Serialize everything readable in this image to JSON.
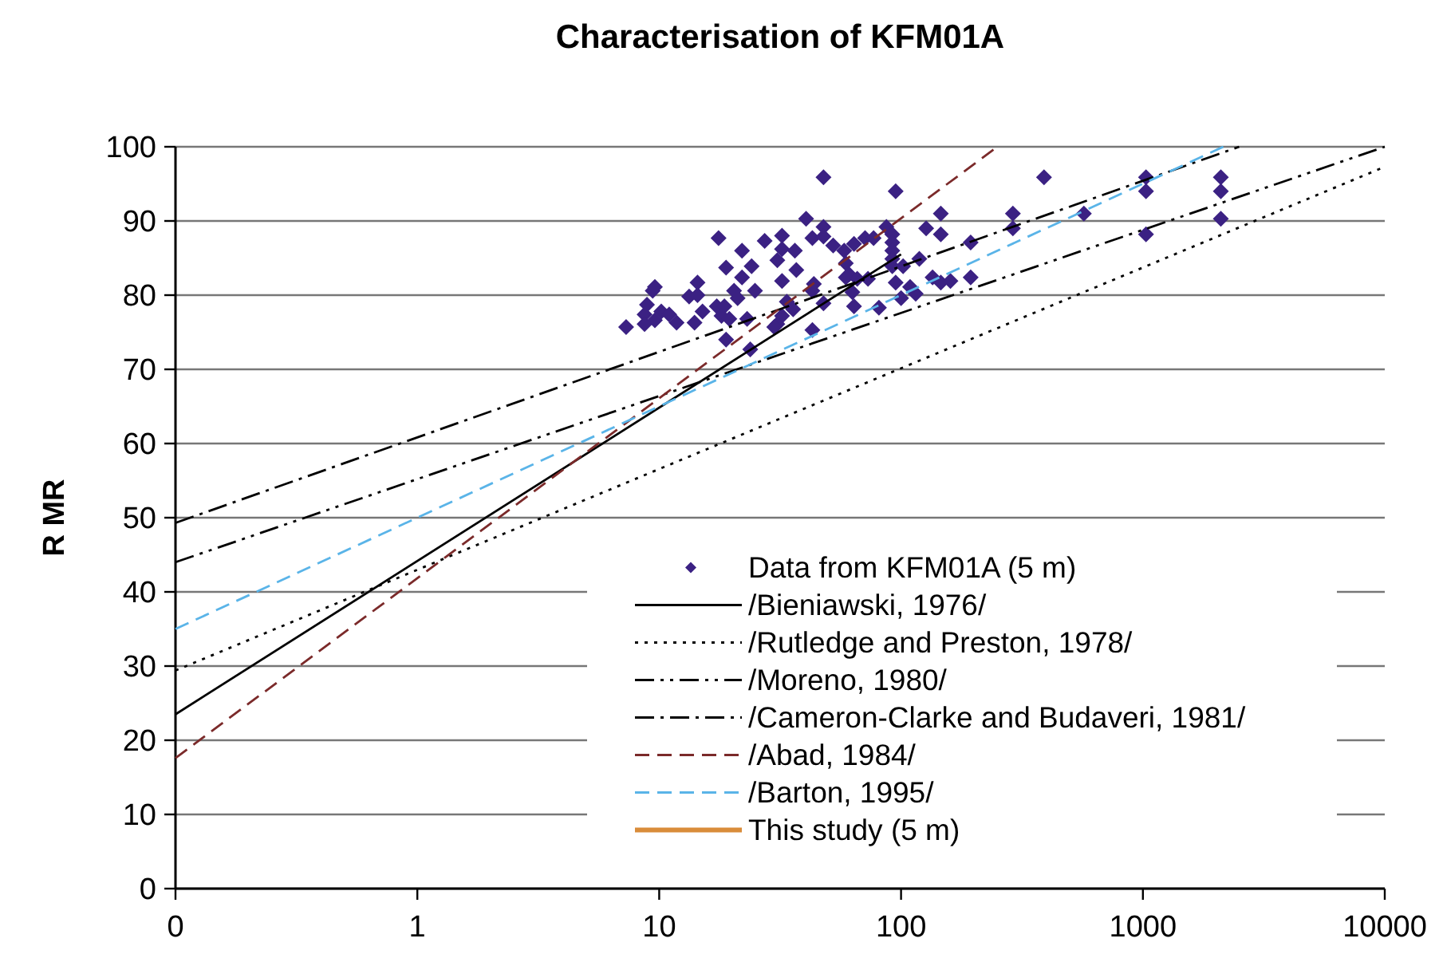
{
  "chart_data": {
    "type": "line",
    "title": "Characterisation of KFM01A",
    "ylabel": "R MR",
    "log": "x",
    "grid": "y",
    "legend": "bottom right",
    "xlim": [
      0.1,
      10000
    ],
    "xticks": [
      {
        "value": 0.1,
        "label": "0"
      },
      1,
      10,
      100,
      1000,
      10000
    ],
    "ylim": [
      0,
      100
    ],
    "yticks": [
      0,
      10,
      20,
      30,
      40,
      50,
      60,
      70,
      80,
      90,
      100
    ],
    "series": [
      {
        "name": "Data from KFM01A (5 m)",
        "type": "scatter",
        "marker": "diamond",
        "color": "#3b2183",
        "x": [
          7.3,
          8.7,
          8.9,
          9.6,
          9.4,
          10.2,
          11,
          11.8,
          8.7,
          9.6,
          13.3,
          14.4,
          14.4,
          15.1,
          14,
          17.6,
          18.9,
          17.3,
          18.6,
          18.1,
          19.5,
          18.9,
          20.4,
          21.1,
          22,
          22,
          24.1,
          24.9,
          23.1,
          23.8,
          27.3,
          30.8,
          32.2,
          32.2,
          32.2,
          36.4,
          36.9,
          33.7,
          32.2,
          30.8,
          29.9,
          35.8,
          40.5,
          43,
          47.8,
          47.8,
          47.8,
          43,
          43.6,
          47.8,
          43,
          52.4,
          58.2,
          59.1,
          61,
          59.1,
          63.9,
          65.9,
          62.9,
          63.9,
          71,
          77,
          73,
          87,
          92,
          92,
          92,
          92,
          92,
          81,
          95,
          95,
          102,
          109,
          115,
          100,
          119,
          127,
          146,
          146,
          135,
          146,
          160,
          194,
          194,
          390,
          290,
          290,
          570,
          1030,
          1030,
          1030,
          2100,
          2100,
          2100
        ],
        "values": [
          75.7,
          77.4,
          78.7,
          81.1,
          80.6,
          77.8,
          77.4,
          76.3,
          76.1,
          76.6,
          79.8,
          80,
          81.7,
          77.8,
          76.3,
          87.7,
          83.7,
          78.5,
          78.5,
          77.2,
          76.8,
          74,
          80.6,
          79.6,
          86,
          82.4,
          83.9,
          80.6,
          76.8,
          72.7,
          87.3,
          84.7,
          88,
          86.2,
          81.9,
          86,
          83.4,
          79.1,
          77.2,
          76.1,
          75.7,
          78.1,
          90.3,
          87.7,
          95.9,
          89.2,
          87.9,
          80.6,
          81.5,
          78.9,
          75.3,
          86.7,
          86,
          84.3,
          82.8,
          82.4,
          86.9,
          82.2,
          80.4,
          78.5,
          87.7,
          87.7,
          82.2,
          89.2,
          88.2,
          87.1,
          86,
          84.9,
          83.9,
          78.3,
          94,
          81.7,
          83.9,
          81.1,
          80.2,
          79.6,
          84.9,
          89,
          91,
          88.2,
          82.4,
          81.7,
          81.9,
          87.1,
          82.4,
          95.9,
          91,
          89,
          91,
          95.9,
          94,
          88.2,
          95.9,
          94,
          90.3
        ]
      },
      {
        "name": "/Bieniawski, 1976/",
        "line_style": "solid",
        "color": "#000000",
        "x": [
          0.1,
          100
        ],
        "values": [
          23.5,
          85.5
        ]
      },
      {
        "name": "/Rutledge and Preston, 1978/",
        "line_style": "dotted",
        "color": "#000000",
        "x": [
          0.1,
          10000
        ],
        "values": [
          29.4,
          97.3
        ]
      },
      {
        "name": "/Moreno, 1980/",
        "line_style": "dashdotdot",
        "color": "#000000",
        "x": [
          0.1,
          10000
        ],
        "values": [
          44,
          100
        ]
      },
      {
        "name": "/Cameron-Clarke and Budaveri, 1981/",
        "line_style": "dashdot",
        "color": "#000000",
        "x": [
          0.1,
          2500
        ],
        "values": [
          49.3,
          100
        ]
      },
      {
        "name": "/Abad, 1984/",
        "line_style": "dashed",
        "color": "#7b2a2a",
        "x": [
          0.1,
          250
        ],
        "values": [
          17.6,
          100
        ]
      },
      {
        "name": "/Barton, 1995/",
        "line_style": "dashed",
        "color": "#5ab4e8",
        "x": [
          0.1,
          2150
        ],
        "values": [
          35,
          100
        ]
      },
      {
        "name": "This study (5 m)",
        "line_style": "solid",
        "color": "#d98c3a"
      }
    ]
  }
}
